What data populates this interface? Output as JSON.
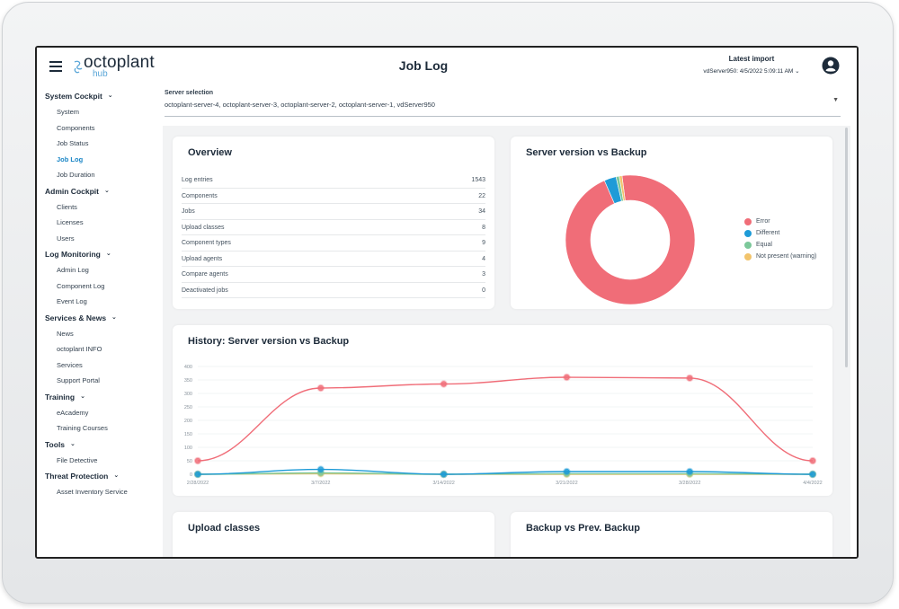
{
  "header": {
    "logo_main": "octoplant",
    "logo_sub": "hub",
    "title": "Job Log",
    "latest_import_label": "Latest import",
    "latest_import_value": "vdServer950: 4/5/2022 5:09:11 AM"
  },
  "sidebar": {
    "groups": [
      {
        "label": "System Cockpit",
        "items": [
          "System",
          "Components",
          "Job Status",
          "Job Log",
          "Job Duration"
        ]
      },
      {
        "label": "Admin Cockpit",
        "items": [
          "Clients",
          "Licenses",
          "Users"
        ]
      },
      {
        "label": "Log Monitoring",
        "items": [
          "Admin Log",
          "Component Log",
          "Event Log"
        ]
      },
      {
        "label": "Services & News",
        "items": [
          "News",
          "octoplant INFO",
          "Services",
          "Support Portal"
        ]
      },
      {
        "label": "Training",
        "items": [
          "eAcademy",
          "Training Courses"
        ]
      },
      {
        "label": "Tools",
        "items": [
          "File Detective"
        ]
      },
      {
        "label": "Threat Protection",
        "items": [
          "Asset Inventory Service"
        ]
      }
    ],
    "active_item": "Job Log"
  },
  "server_selection": {
    "label": "Server selection",
    "value": "octoplant-server-4, octoplant-server-3, octoplant-server-2, octoplant-server-1, vdServer950"
  },
  "overview": {
    "title": "Overview",
    "rows": [
      {
        "label": "Log entries",
        "value": "1543"
      },
      {
        "label": "Components",
        "value": "22"
      },
      {
        "label": "Jobs",
        "value": "34"
      },
      {
        "label": "Upload classes",
        "value": "8"
      },
      {
        "label": "Component types",
        "value": "9"
      },
      {
        "label": "Upload agents",
        "value": "4"
      },
      {
        "label": "Compare agents",
        "value": "3"
      },
      {
        "label": "Deactivated jobs",
        "value": "0"
      }
    ]
  },
  "colors": {
    "error": "#f06d78",
    "different": "#1e9bd7",
    "equal": "#7cc89a",
    "not_present": "#f2c46c",
    "active_nav": "#1b86c6"
  },
  "server_vs_backup": {
    "title": "Server version vs Backup",
    "chart_data": {
      "type": "pie",
      "donut": true,
      "labels": [
        "Error",
        "Different",
        "Equal",
        "Not present (warning)"
      ],
      "values": [
        95.5,
        3.0,
        0.8,
        0.7
      ],
      "legend_position": "right"
    }
  },
  "history": {
    "title": "History: Server version vs Backup",
    "chart_data": {
      "type": "line",
      "x": [
        "2/28/2022",
        "3/7/2022",
        "3/14/2022",
        "3/21/2022",
        "3/28/2022",
        "4/4/2022"
      ],
      "y_ticks": [
        "400",
        "350",
        "300",
        "250",
        "200",
        "150",
        "100",
        "50",
        "0"
      ],
      "ylim": [
        0,
        400
      ],
      "grid": true,
      "series": [
        {
          "key": "error",
          "values": [
            50,
            320,
            335,
            360,
            357,
            50
          ]
        },
        {
          "key": "different",
          "values": [
            0,
            18,
            0,
            10,
            10,
            0
          ]
        },
        {
          "key": "equal",
          "values": [
            0,
            5,
            0,
            2,
            2,
            0
          ]
        },
        {
          "key": "not_present",
          "values": [
            0,
            2,
            0,
            0,
            0,
            0
          ]
        }
      ]
    }
  },
  "upload_classes": {
    "title": "Upload classes"
  },
  "backup_vs_prev": {
    "title": "Backup vs Prev. Backup"
  }
}
